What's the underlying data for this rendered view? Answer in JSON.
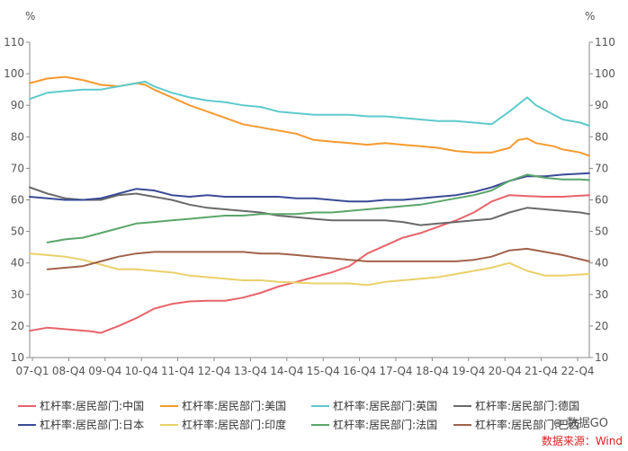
{
  "chart_data": {
    "type": "line",
    "title": "",
    "ylabel_left": "%",
    "ylabel_right": "%",
    "ylim": [
      10,
      110
    ],
    "yticks": [
      10,
      20,
      30,
      40,
      50,
      60,
      70,
      80,
      90,
      100,
      110
    ],
    "x_start": 2007.0,
    "x_end": 2022.75,
    "x_tick_labels": [
      "07-Q1",
      "08-Q4",
      "09-Q4",
      "10-Q4",
      "11-Q4",
      "12-Q4",
      "13-Q4",
      "14-Q4",
      "15-Q4",
      "16-Q4",
      "17-Q4",
      "18-Q4",
      "19-Q4",
      "20-Q4",
      "21-Q4",
      "22-Q4"
    ],
    "grid": false,
    "legend_position": "bottom",
    "series": [
      {
        "name": "杠杆率:居民部门:中国",
        "color": "#e8636b",
        "points": [
          [
            2007,
            18.5
          ],
          [
            2007.5,
            19.5
          ],
          [
            2008,
            19
          ],
          [
            2008.75,
            18.3
          ],
          [
            2009,
            17.8
          ],
          [
            2009.5,
            20
          ],
          [
            2010,
            22.5
          ],
          [
            2010.5,
            25.5
          ],
          [
            2011,
            27
          ],
          [
            2011.5,
            27.8
          ],
          [
            2012,
            28
          ],
          [
            2012.5,
            28
          ],
          [
            2013,
            29
          ],
          [
            2013.5,
            30.5
          ],
          [
            2014,
            32.5
          ],
          [
            2014.5,
            34
          ],
          [
            2015,
            35.5
          ],
          [
            2015.5,
            37
          ],
          [
            2016,
            39
          ],
          [
            2016.5,
            43
          ],
          [
            2017,
            45.5
          ],
          [
            2017.5,
            48
          ],
          [
            2018,
            49.5
          ],
          [
            2018.5,
            51.5
          ],
          [
            2019,
            53.5
          ],
          [
            2019.5,
            56
          ],
          [
            2020,
            59.5
          ],
          [
            2020.5,
            61.5
          ],
          [
            2021,
            61.2
          ],
          [
            2021.5,
            61
          ],
          [
            2022,
            61
          ],
          [
            2022.75,
            61.5
          ]
        ]
      },
      {
        "name": "杠杆率:居民部门:美国",
        "color": "#f59a2e",
        "points": [
          [
            2007,
            97
          ],
          [
            2007.5,
            98.5
          ],
          [
            2008,
            99
          ],
          [
            2008.5,
            98
          ],
          [
            2009,
            96.5
          ],
          [
            2009.5,
            96
          ],
          [
            2010,
            97
          ],
          [
            2010.25,
            96.5
          ],
          [
            2010.5,
            95
          ],
          [
            2011,
            92.5
          ],
          [
            2011.5,
            90
          ],
          [
            2012,
            88
          ],
          [
            2012.5,
            86
          ],
          [
            2013,
            84
          ],
          [
            2013.5,
            83
          ],
          [
            2014,
            82
          ],
          [
            2014.5,
            81
          ],
          [
            2015,
            79
          ],
          [
            2015.5,
            78.5
          ],
          [
            2016,
            78
          ],
          [
            2016.5,
            77.5
          ],
          [
            2017,
            78
          ],
          [
            2017.5,
            77.5
          ],
          [
            2018,
            77
          ],
          [
            2018.5,
            76.5
          ],
          [
            2019,
            75.5
          ],
          [
            2019.5,
            75
          ],
          [
            2020,
            75
          ],
          [
            2020.5,
            76.5
          ],
          [
            2020.75,
            79
          ],
          [
            2021,
            79.5
          ],
          [
            2021.25,
            78
          ],
          [
            2021.75,
            77
          ],
          [
            2022,
            76
          ],
          [
            2022.5,
            75
          ],
          [
            2022.75,
            74
          ]
        ]
      },
      {
        "name": "杠杆率:居民部门:英国",
        "color": "#5ecacb",
        "points": [
          [
            2007,
            92
          ],
          [
            2007.5,
            94
          ],
          [
            2008,
            94.5
          ],
          [
            2008.5,
            95
          ],
          [
            2009,
            95
          ],
          [
            2009.5,
            96
          ],
          [
            2010,
            97
          ],
          [
            2010.25,
            97.5
          ],
          [
            2010.5,
            96
          ],
          [
            2011,
            94
          ],
          [
            2011.5,
            92.5
          ],
          [
            2012,
            91.5
          ],
          [
            2012.5,
            91
          ],
          [
            2013,
            90
          ],
          [
            2013.5,
            89.5
          ],
          [
            2014,
            88
          ],
          [
            2014.5,
            87.5
          ],
          [
            2015,
            87
          ],
          [
            2015.5,
            87
          ],
          [
            2016,
            87
          ],
          [
            2016.5,
            86.5
          ],
          [
            2017,
            86.5
          ],
          [
            2017.5,
            86
          ],
          [
            2018,
            85.5
          ],
          [
            2018.5,
            85
          ],
          [
            2019,
            85
          ],
          [
            2019.5,
            84.5
          ],
          [
            2020,
            84
          ],
          [
            2020.5,
            88
          ],
          [
            2021,
            92.5
          ],
          [
            2021.25,
            90
          ],
          [
            2021.75,
            87
          ],
          [
            2022,
            85.5
          ],
          [
            2022.5,
            84.5
          ],
          [
            2022.75,
            83.5
          ]
        ]
      },
      {
        "name": "杠杆率:居民部门:德国",
        "color": "#6a6a6a",
        "points": [
          [
            2007,
            64
          ],
          [
            2007.5,
            62
          ],
          [
            2008,
            60.5
          ],
          [
            2008.5,
            60
          ],
          [
            2009,
            60
          ],
          [
            2009.5,
            61.5
          ],
          [
            2010,
            62
          ],
          [
            2010.5,
            61
          ],
          [
            2011,
            60
          ],
          [
            2011.5,
            58.5
          ],
          [
            2012,
            57.5
          ],
          [
            2012.5,
            57
          ],
          [
            2013,
            56.5
          ],
          [
            2013.5,
            56
          ],
          [
            2014,
            55
          ],
          [
            2014.5,
            54.5
          ],
          [
            2015,
            54
          ],
          [
            2015.5,
            53.5
          ],
          [
            2016,
            53.5
          ],
          [
            2016.5,
            53.5
          ],
          [
            2017,
            53.5
          ],
          [
            2017.5,
            53
          ],
          [
            2018,
            52
          ],
          [
            2018.5,
            52.5
          ],
          [
            2019,
            53
          ],
          [
            2019.5,
            53.5
          ],
          [
            2020,
            54
          ],
          [
            2020.5,
            56
          ],
          [
            2021,
            57.5
          ],
          [
            2021.5,
            57
          ],
          [
            2022,
            56.5
          ],
          [
            2022.5,
            56
          ],
          [
            2022.75,
            55.5
          ]
        ]
      },
      {
        "name": "杠杆率:居民部门:日本",
        "color": "#3a4a96",
        "points": [
          [
            2007,
            61
          ],
          [
            2007.5,
            60.5
          ],
          [
            2008,
            60
          ],
          [
            2008.5,
            60
          ],
          [
            2009,
            60.5
          ],
          [
            2009.5,
            62
          ],
          [
            2010,
            63.5
          ],
          [
            2010.5,
            63
          ],
          [
            2011,
            61.5
          ],
          [
            2011.5,
            61
          ],
          [
            2012,
            61.5
          ],
          [
            2012.5,
            61
          ],
          [
            2013,
            61
          ],
          [
            2013.5,
            61
          ],
          [
            2014,
            61
          ],
          [
            2014.5,
            60.5
          ],
          [
            2015,
            60.5
          ],
          [
            2015.5,
            60
          ],
          [
            2016,
            59.5
          ],
          [
            2016.5,
            59.5
          ],
          [
            2017,
            60
          ],
          [
            2017.5,
            60
          ],
          [
            2018,
            60.5
          ],
          [
            2018.5,
            61
          ],
          [
            2019,
            61.5
          ],
          [
            2019.5,
            62.5
          ],
          [
            2020,
            64
          ],
          [
            2020.5,
            66
          ],
          [
            2021,
            67.5
          ],
          [
            2021.5,
            67.5
          ],
          [
            2022,
            68
          ],
          [
            2022.75,
            68.5
          ]
        ]
      },
      {
        "name": "杠杆率:居民部门:印度",
        "color": "#ead06a",
        "points": [
          [
            2007,
            43
          ],
          [
            2007.5,
            42.5
          ],
          [
            2008,
            42
          ],
          [
            2008.5,
            41
          ],
          [
            2009,
            39.5
          ],
          [
            2009.5,
            38
          ],
          [
            2010,
            38
          ],
          [
            2010.5,
            37.5
          ],
          [
            2011,
            37
          ],
          [
            2011.5,
            36
          ],
          [
            2012,
            35.5
          ],
          [
            2012.5,
            35
          ],
          [
            2013,
            34.5
          ],
          [
            2013.5,
            34.5
          ],
          [
            2014,
            34
          ],
          [
            2014.5,
            33.8
          ],
          [
            2015,
            33.5
          ],
          [
            2015.5,
            33.5
          ],
          [
            2016,
            33.5
          ],
          [
            2016.5,
            33
          ],
          [
            2017,
            34
          ],
          [
            2017.5,
            34.5
          ],
          [
            2018,
            35
          ],
          [
            2018.5,
            35.5
          ],
          [
            2019,
            36.5
          ],
          [
            2019.5,
            37.5
          ],
          [
            2020,
            38.5
          ],
          [
            2020.5,
            40
          ],
          [
            2021,
            37.5
          ],
          [
            2021.5,
            36
          ],
          [
            2022,
            36
          ],
          [
            2022.75,
            36.5
          ]
        ]
      },
      {
        "name": "杠杆率:居民部门:法国",
        "color": "#5aa66a",
        "points": [
          [
            2007.5,
            46.5
          ],
          [
            2008,
            47.5
          ],
          [
            2008.5,
            48
          ],
          [
            2009,
            49.5
          ],
          [
            2009.5,
            51
          ],
          [
            2010,
            52.5
          ],
          [
            2010.5,
            53
          ],
          [
            2011,
            53.5
          ],
          [
            2011.5,
            54
          ],
          [
            2012,
            54.5
          ],
          [
            2012.5,
            55
          ],
          [
            2013,
            55
          ],
          [
            2013.5,
            55.5
          ],
          [
            2014,
            55.5
          ],
          [
            2014.5,
            55.5
          ],
          [
            2015,
            56
          ],
          [
            2015.5,
            56
          ],
          [
            2016,
            56.5
          ],
          [
            2016.5,
            57
          ],
          [
            2017,
            57.5
          ],
          [
            2017.5,
            58
          ],
          [
            2018,
            58.5
          ],
          [
            2018.5,
            59.5
          ],
          [
            2019,
            60.5
          ],
          [
            2019.5,
            61.5
          ],
          [
            2020,
            63
          ],
          [
            2020.5,
            66
          ],
          [
            2021,
            68
          ],
          [
            2021.5,
            67
          ],
          [
            2022,
            66.5
          ],
          [
            2022.5,
            66.5
          ],
          [
            2022.75,
            66.3
          ]
        ]
      },
      {
        "name": "杠杆率:居民部门:巴西",
        "color": "#a0624a",
        "points": [
          [
            2007.5,
            38
          ],
          [
            2008,
            38.5
          ],
          [
            2008.5,
            39
          ],
          [
            2009,
            40.5
          ],
          [
            2009.5,
            42
          ],
          [
            2010,
            43
          ],
          [
            2010.5,
            43.5
          ],
          [
            2011,
            43.5
          ],
          [
            2011.5,
            43.5
          ],
          [
            2012,
            43.5
          ],
          [
            2012.5,
            43.5
          ],
          [
            2013,
            43.5
          ],
          [
            2013.5,
            43
          ],
          [
            2014,
            43
          ],
          [
            2014.5,
            42.5
          ],
          [
            2015,
            42
          ],
          [
            2015.5,
            41.5
          ],
          [
            2016,
            41
          ],
          [
            2016.5,
            40.5
          ],
          [
            2017,
            40.5
          ],
          [
            2017.5,
            40.5
          ],
          [
            2018,
            40.5
          ],
          [
            2018.5,
            40.5
          ],
          [
            2019,
            40.5
          ],
          [
            2019.5,
            41
          ],
          [
            2020,
            42
          ],
          [
            2020.5,
            44
          ],
          [
            2021,
            44.5
          ],
          [
            2021.5,
            43.5
          ],
          [
            2022,
            42.5
          ],
          [
            2022.75,
            40.5
          ]
        ]
      }
    ]
  },
  "footer": {
    "watermark": "数据GO",
    "source": "数据来源：Wind"
  }
}
